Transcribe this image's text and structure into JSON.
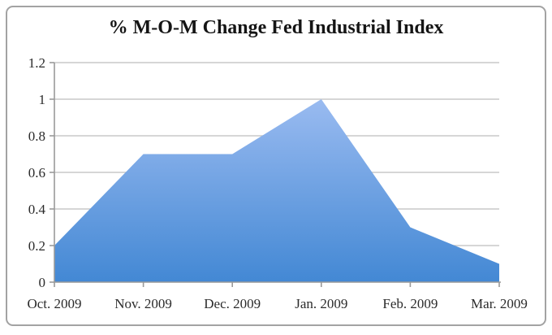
{
  "title": "% M-O-M Change Fed Industrial Index",
  "chart_data": {
    "type": "area",
    "title": "% M-O-M Change Fed Industrial Index",
    "categories": [
      "Oct. 2009",
      "Nov. 2009",
      "Dec. 2009",
      "Jan. 2009",
      "Feb. 2009",
      "Mar. 2009"
    ],
    "values": [
      0.2,
      0.7,
      0.7,
      1.0,
      0.3,
      0.1
    ],
    "xlabel": "",
    "ylabel": "",
    "ylim": [
      0,
      1.2
    ],
    "ytick_step": 0.2,
    "ytick_labels": [
      "0",
      "0.2",
      "0.4",
      "0.6",
      "0.8",
      "1",
      "1.2"
    ],
    "grid": true,
    "legend": false,
    "colors": {
      "fill_gradient_top": "#abc5f6",
      "fill_gradient_bottom": "#4388d4",
      "gridline": "#c8c8c8",
      "axis": "#9a9a9a",
      "tick": "#9a9a9a",
      "label_text": "#2b2b2b",
      "title_text": "#151515",
      "card_border": "#a3a3a3",
      "background": "#ffffff"
    }
  }
}
